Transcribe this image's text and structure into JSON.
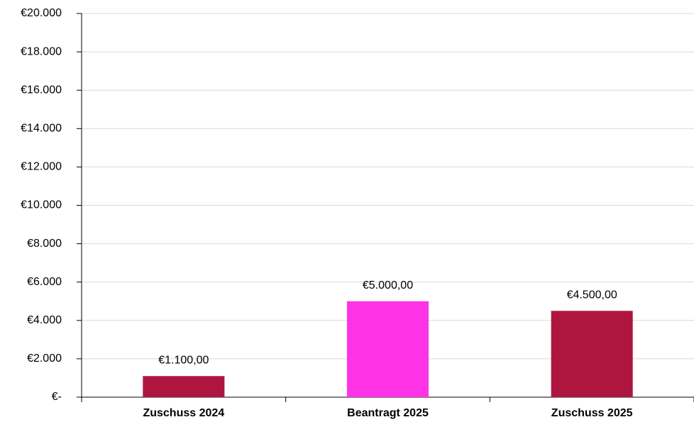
{
  "chart_data": {
    "type": "bar",
    "categories": [
      "Zuschuss 2024",
      "Beantragt 2025",
      "Zuschuss 2025"
    ],
    "values": [
      1100,
      5000,
      4500
    ],
    "value_labels": [
      "€1.100,00",
      "€5.000,00",
      "€4.500,00"
    ],
    "colors": [
      "#ae1640",
      "#ff33e6",
      "#ae1640"
    ],
    "ylim": [
      0,
      20000
    ],
    "yticks": [
      {
        "value": 0,
        "label": "€-"
      },
      {
        "value": 2000,
        "label": "€2.000"
      },
      {
        "value": 4000,
        "label": "€4.000"
      },
      {
        "value": 6000,
        "label": "€6.000"
      },
      {
        "value": 8000,
        "label": "€8.000"
      },
      {
        "value": 10000,
        "label": "€10.000"
      },
      {
        "value": 12000,
        "label": "€12.000"
      },
      {
        "value": 14000,
        "label": "€14.000"
      },
      {
        "value": 16000,
        "label": "€16.000"
      },
      {
        "value": 18000,
        "label": "€18.000"
      },
      {
        "value": 20000,
        "label": "€20.000"
      }
    ],
    "grid": true
  }
}
